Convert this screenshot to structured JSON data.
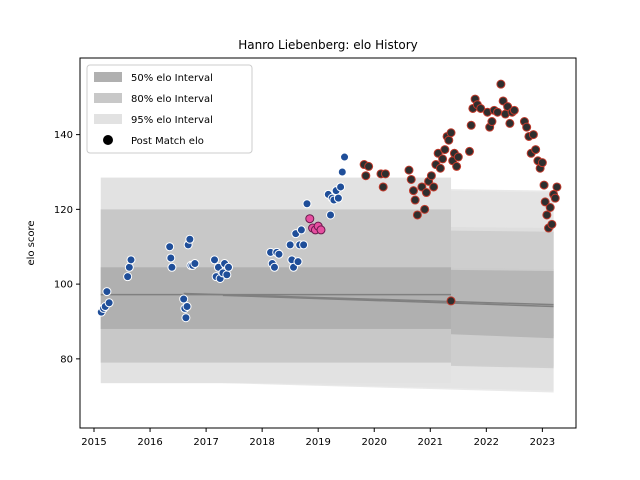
{
  "chart_data": {
    "type": "scatter",
    "title": "Hanro Liebenberg: elo History",
    "xlabel": "",
    "ylabel": "elo score",
    "xlim": [
      2014.75,
      2023.6
    ],
    "ylim": [
      61.5,
      160.5
    ],
    "x_ticks": [
      2015,
      2016,
      2017,
      2018,
      2019,
      2020,
      2021,
      2022,
      2023
    ],
    "y_ticks": [
      80,
      100,
      120,
      140
    ],
    "grid": false,
    "legend_position": "top-left",
    "legend": [
      {
        "label": "50% elo Interval",
        "kind": "band",
        "color": "#b0b0b0"
      },
      {
        "label": "80% elo Interval",
        "kind": "band",
        "color": "#c8c8c8"
      },
      {
        "label": "95% elo Interval",
        "kind": "band",
        "color": "#e2e2e2"
      },
      {
        "label": "Post Match elo",
        "kind": "marker",
        "color": "#000000"
      }
    ],
    "colors": {
      "band_50": "#b0b0b0",
      "band_80": "#c8c8c8",
      "band_95": "#e2e2e2",
      "median_line": "#808080",
      "blue_marker": "#1f4e99",
      "pink_marker": "#e64ea0",
      "dark_marker": "#2e2e2e",
      "dark_marker_edge": "#c0392b"
    },
    "intervals": {
      "primary": {
        "x_start": 2015.12,
        "x_end": 2021.37,
        "median": 97.2,
        "p50": [
          88.0,
          104.5
        ],
        "p80": [
          79.0,
          120.0
        ],
        "p95": [
          73.5,
          128.5
        ]
      },
      "branches": [
        {
          "x_start": 2016.6,
          "x_end": 2023.2,
          "median_start": 97.5,
          "median_end": 94.5,
          "p50": [
            [
              89.5,
              105.5
            ],
            [
              86.0,
              104.0
            ]
          ],
          "p80": [
            [
              80.0,
              116.0
            ],
            [
              78.0,
              115.0
            ]
          ],
          "p95": [
            [
              74.0,
              126.5
            ],
            [
              71.5,
              125.0
            ]
          ]
        },
        {
          "x_start": 2017.3,
          "x_end": 2023.2,
          "median_start": 97.0,
          "median_end": 94.0,
          "p50": [
            [
              89.0,
              104.5
            ],
            [
              85.5,
              103.5
            ]
          ],
          "p80": [
            [
              79.5,
              115.0
            ],
            [
              77.5,
              114.0
            ]
          ],
          "p95": [
            [
              73.5,
              126.0
            ],
            [
              71.0,
              124.5
            ]
          ]
        }
      ]
    },
    "series": [
      {
        "name": "Post Match elo",
        "group": "early",
        "points": [
          [
            2015.13,
            92.5
          ],
          [
            2015.17,
            93.5
          ],
          [
            2015.2,
            94.0
          ],
          [
            2015.23,
            98.0
          ],
          [
            2015.27,
            95.0
          ],
          [
            2015.6,
            102.0
          ],
          [
            2015.63,
            104.5
          ],
          [
            2015.66,
            106.5
          ],
          [
            2016.35,
            110.0
          ],
          [
            2016.37,
            107.0
          ],
          [
            2016.39,
            104.5
          ],
          [
            2016.6,
            96.0
          ],
          [
            2016.62,
            93.5
          ],
          [
            2016.64,
            91.0
          ],
          [
            2016.66,
            94.0
          ],
          [
            2016.68,
            110.5
          ],
          [
            2016.71,
            112.0
          ],
          [
            2016.73,
            105.0
          ],
          [
            2016.76,
            105.0
          ],
          [
            2016.8,
            105.5
          ],
          [
            2017.15,
            106.5
          ],
          [
            2017.18,
            102.0
          ],
          [
            2017.22,
            104.5
          ],
          [
            2017.25,
            101.5
          ],
          [
            2017.3,
            103.0
          ],
          [
            2017.33,
            105.5
          ],
          [
            2017.37,
            102.5
          ],
          [
            2017.4,
            104.5
          ],
          [
            2018.15,
            108.5
          ],
          [
            2018.18,
            105.5
          ],
          [
            2018.22,
            104.5
          ],
          [
            2018.26,
            108.5
          ],
          [
            2018.3,
            108.0
          ],
          [
            2018.5,
            110.5
          ],
          [
            2018.53,
            106.5
          ],
          [
            2018.56,
            104.5
          ],
          [
            2018.6,
            113.5
          ],
          [
            2018.64,
            106.0
          ],
          [
            2018.67,
            110.5
          ],
          [
            2018.7,
            114.5
          ],
          [
            2018.74,
            110.5
          ],
          [
            2018.8,
            121.5
          ],
          [
            2019.18,
            124.0
          ],
          [
            2019.22,
            118.5
          ],
          [
            2019.25,
            123.0
          ],
          [
            2019.28,
            122.5
          ],
          [
            2019.32,
            125.0
          ],
          [
            2019.36,
            123.0
          ],
          [
            2019.4,
            126.0
          ],
          [
            2019.43,
            130.0
          ],
          [
            2019.47,
            134.0
          ]
        ]
      },
      {
        "name": "Post Match elo",
        "group": "mid",
        "points": [
          [
            2018.85,
            117.5
          ],
          [
            2018.9,
            115.0
          ],
          [
            2018.95,
            114.5
          ],
          [
            2019.0,
            115.5
          ],
          [
            2019.05,
            114.5
          ]
        ]
      },
      {
        "name": "Post Match elo",
        "group": "late",
        "points": [
          [
            2019.82,
            132.0
          ],
          [
            2019.85,
            129.0
          ],
          [
            2019.9,
            131.5
          ],
          [
            2020.12,
            129.5
          ],
          [
            2020.16,
            126.0
          ],
          [
            2020.2,
            129.5
          ],
          [
            2020.62,
            130.5
          ],
          [
            2020.66,
            128.0
          ],
          [
            2020.7,
            125.0
          ],
          [
            2020.73,
            122.5
          ],
          [
            2020.77,
            118.5
          ],
          [
            2020.85,
            126.0
          ],
          [
            2020.9,
            120.0
          ],
          [
            2020.93,
            124.5
          ],
          [
            2020.97,
            127.5
          ],
          [
            2021.02,
            129.0
          ],
          [
            2021.06,
            126.0
          ],
          [
            2021.1,
            132.0
          ],
          [
            2021.14,
            135.0
          ],
          [
            2021.18,
            131.0
          ],
          [
            2021.22,
            133.5
          ],
          [
            2021.26,
            136.0
          ],
          [
            2021.3,
            139.5
          ],
          [
            2021.33,
            138.5
          ],
          [
            2021.37,
            140.5
          ],
          [
            2021.37,
            95.5
          ],
          [
            2021.4,
            133.0
          ],
          [
            2021.43,
            135.0
          ],
          [
            2021.47,
            131.5
          ],
          [
            2021.5,
            134.0
          ],
          [
            2021.7,
            135.5
          ],
          [
            2021.73,
            142.5
          ],
          [
            2021.76,
            147.0
          ],
          [
            2021.8,
            149.5
          ],
          [
            2021.84,
            148.0
          ],
          [
            2021.9,
            147.0
          ],
          [
            2022.02,
            146.0
          ],
          [
            2022.06,
            142.0
          ],
          [
            2022.1,
            143.5
          ],
          [
            2022.14,
            146.5
          ],
          [
            2022.2,
            146.0
          ],
          [
            2022.26,
            153.5
          ],
          [
            2022.3,
            149.0
          ],
          [
            2022.34,
            145.5
          ],
          [
            2022.38,
            147.5
          ],
          [
            2022.42,
            143.0
          ],
          [
            2022.46,
            146.0
          ],
          [
            2022.5,
            146.5
          ],
          [
            2022.68,
            143.5
          ],
          [
            2022.72,
            142.0
          ],
          [
            2022.76,
            139.5
          ],
          [
            2022.8,
            135.0
          ],
          [
            2022.84,
            140.0
          ],
          [
            2022.88,
            136.0
          ],
          [
            2022.92,
            133.0
          ],
          [
            2022.96,
            131.0
          ],
          [
            2023.0,
            132.5
          ],
          [
            2023.03,
            126.5
          ],
          [
            2023.05,
            122.0
          ],
          [
            2023.08,
            118.5
          ],
          [
            2023.11,
            115.0
          ],
          [
            2023.14,
            120.5
          ],
          [
            2023.17,
            116.0
          ],
          [
            2023.2,
            124.0
          ],
          [
            2023.23,
            123.0
          ],
          [
            2023.26,
            126.0
          ]
        ]
      }
    ]
  }
}
